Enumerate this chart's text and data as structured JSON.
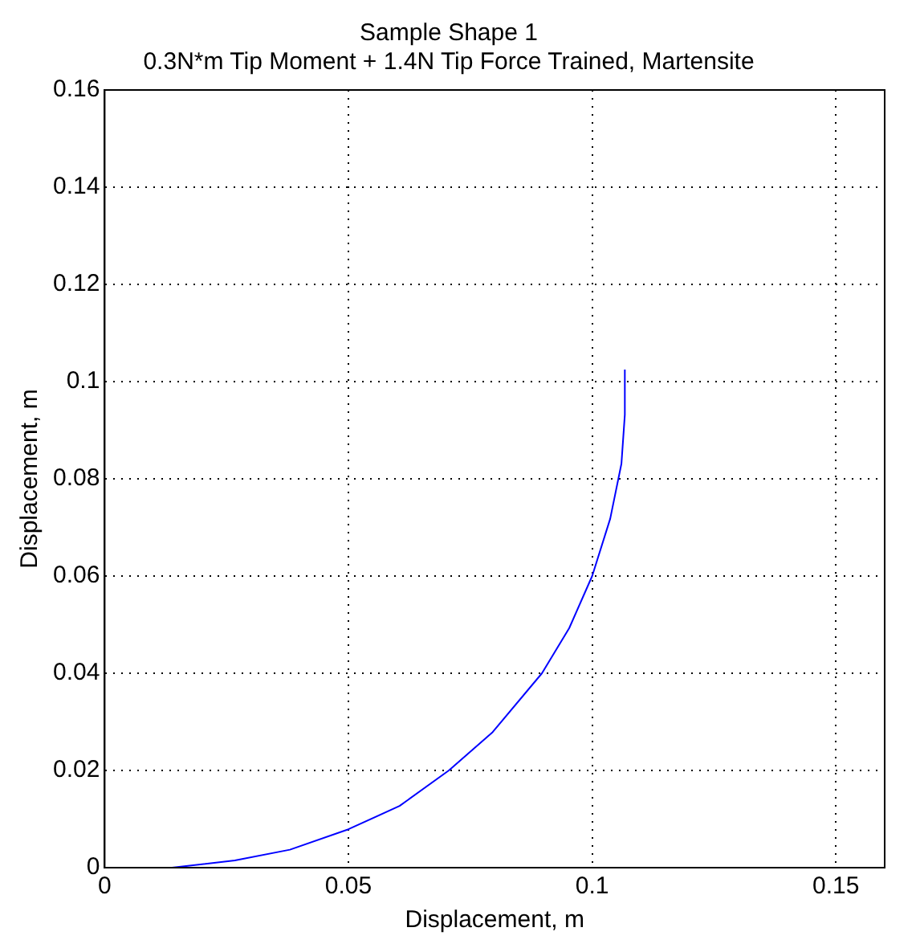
{
  "chart_data": {
    "type": "line",
    "title": "Sample Shape 1",
    "subtitle": "0.3N*m Tip Moment + 1.4N Tip Force Trained, Martensite",
    "xlabel": "Displacement, m",
    "ylabel": "Displacement, m",
    "x": [
      0.0138,
      0.0267,
      0.038,
      0.05,
      0.0605,
      0.0706,
      0.0796,
      0.0897,
      0.0953,
      0.1,
      0.1037,
      0.106,
      0.1067,
      0.1067
    ],
    "series": [
      {
        "color": "#0000ff",
        "values": [
          0,
          0.0015,
          0.0037,
          0.0079,
          0.0127,
          0.02,
          0.0279,
          0.04,
          0.0493,
          0.06,
          0.0718,
          0.0831,
          0.0932,
          0.1025
        ]
      }
    ],
    "xlim": [
      0,
      0.16
    ],
    "xticks": [
      0,
      0.05,
      0.1,
      0.15
    ],
    "ylim": [
      0,
      0.16
    ],
    "yticks": [
      0,
      0.02,
      0.04,
      0.06,
      0.08,
      0.1,
      0.12,
      0.14,
      0.16
    ],
    "grid": true,
    "legend": false,
    "marker": "none",
    "line_style": "solid"
  }
}
